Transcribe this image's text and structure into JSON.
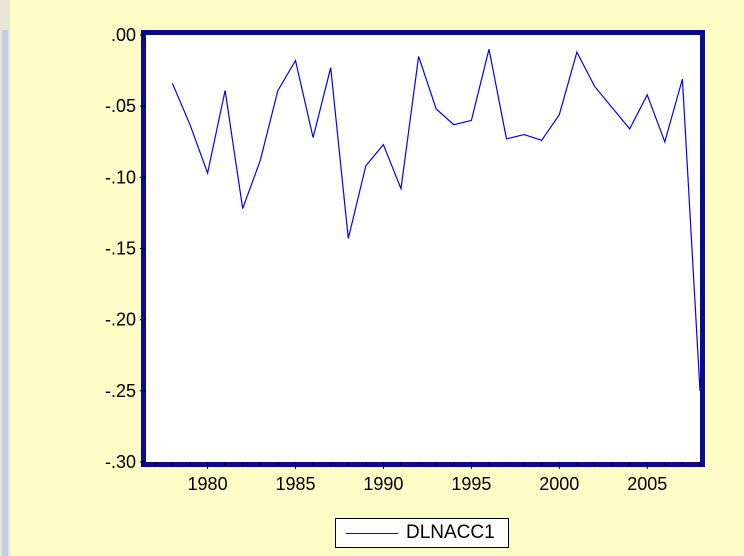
{
  "colors": {
    "background": "#fdfbc6",
    "plot_background": "#ffffff",
    "frame": "#0a0a8c",
    "series": "#0000ff",
    "text": "#000000"
  },
  "chart_data": {
    "type": "line",
    "title": "",
    "xlabel": "",
    "ylabel": "",
    "xlim": [
      1976.5,
      2008
    ],
    "ylim": [
      -0.3,
      0.0
    ],
    "x_ticks": [
      1980,
      1985,
      1990,
      1995,
      2000,
      2005
    ],
    "x_tick_labels": [
      "1980",
      "1985",
      "1990",
      "1995",
      "2000",
      "2005"
    ],
    "y_ticks": [
      0.0,
      -0.05,
      -0.1,
      -0.15,
      -0.2,
      -0.25,
      -0.3
    ],
    "y_tick_labels": [
      ".00",
      "-.05",
      "-.10",
      "-.15",
      "-.20",
      "-.25",
      "-.30"
    ],
    "grid": false,
    "legend_position": "bottom-center",
    "x": [
      1978,
      1979,
      1980,
      1981,
      1982,
      1983,
      1984,
      1985,
      1986,
      1987,
      1988,
      1989,
      1990,
      1991,
      1992,
      1993,
      1994,
      1995,
      1996,
      1997,
      1998,
      1999,
      2000,
      2001,
      2002,
      2003,
      2004,
      2005,
      2006,
      2007,
      2008
    ],
    "series": [
      {
        "name": "DLNACC1",
        "values": [
          -0.034,
          -0.063,
          -0.097,
          -0.039,
          -0.122,
          -0.088,
          -0.039,
          -0.018,
          -0.072,
          -0.023,
          -0.143,
          -0.092,
          -0.077,
          -0.108,
          -0.015,
          -0.052,
          -0.063,
          -0.06,
          -0.01,
          -0.073,
          -0.07,
          -0.074,
          -0.056,
          -0.012,
          -0.036,
          -0.051,
          -0.066,
          -0.042,
          -0.075,
          -0.031,
          -0.25
        ]
      }
    ]
  }
}
